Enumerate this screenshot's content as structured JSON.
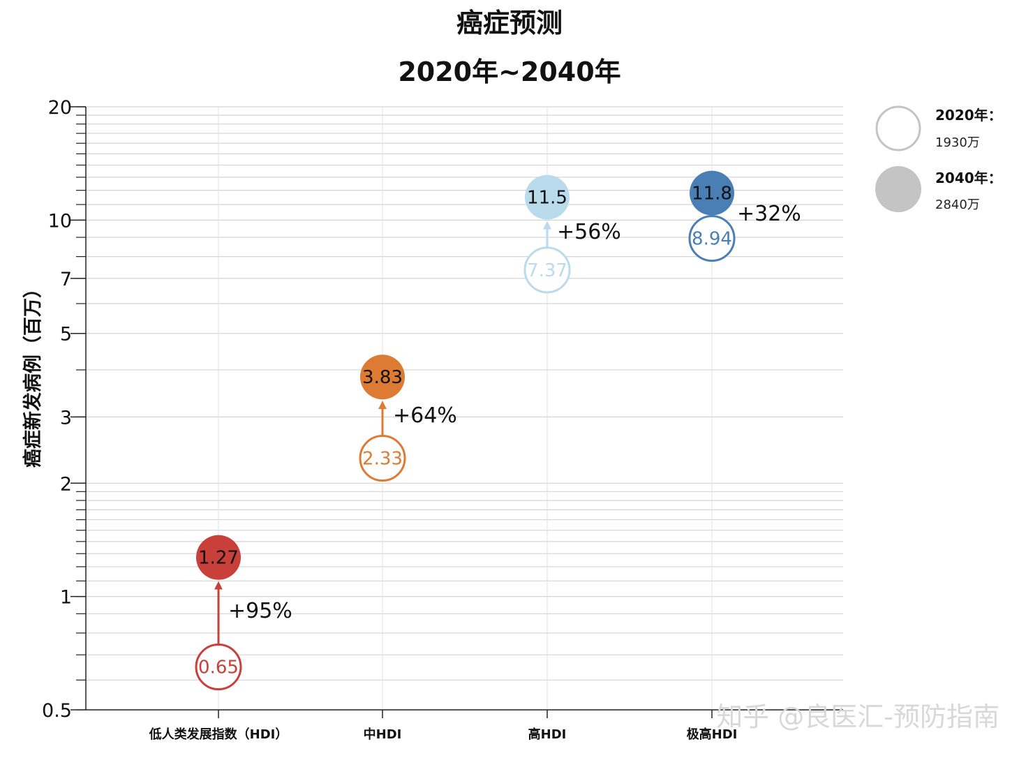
{
  "chart_data": {
    "type": "scatter",
    "title": "癌症预测",
    "subtitle": "2020年~2040年",
    "ylabel": "癌症新发病例（百万）",
    "xlabel": "",
    "yscale": "log",
    "ylim": [
      0.5,
      20
    ],
    "yticks": [
      0.5,
      1,
      2,
      3,
      5,
      7,
      10,
      20
    ],
    "grid": true,
    "legend_position": "top-right",
    "categories": [
      "低人类发展指数（HDI）",
      "中HDI",
      "高HDI",
      "极高HDI"
    ],
    "colors": [
      "#c9403a",
      "#dd7a34",
      "#b9dbec",
      "#4a7fb5"
    ],
    "series": [
      {
        "name": "2020年：",
        "marker": "open-circle",
        "values": [
          0.65,
          2.33,
          7.37,
          8.94
        ]
      },
      {
        "name": "2040年：",
        "marker": "filled-circle",
        "values": [
          1.27,
          3.83,
          11.5,
          11.8
        ]
      }
    ],
    "value_labels_2020": [
      "0.65",
      "2.33",
      "7.37",
      "8.94"
    ],
    "value_labels_2040": [
      "1.27",
      "3.83",
      "11.5",
      "11.8"
    ],
    "change_labels": [
      "+95%",
      "+64%",
      "+56%",
      "+32%"
    ],
    "legend": [
      {
        "title": "2020年：",
        "subtitle": "1930万"
      },
      {
        "title": "2040年：",
        "subtitle": "2840万"
      }
    ]
  },
  "watermark": "知乎 @良医汇-预防指南"
}
